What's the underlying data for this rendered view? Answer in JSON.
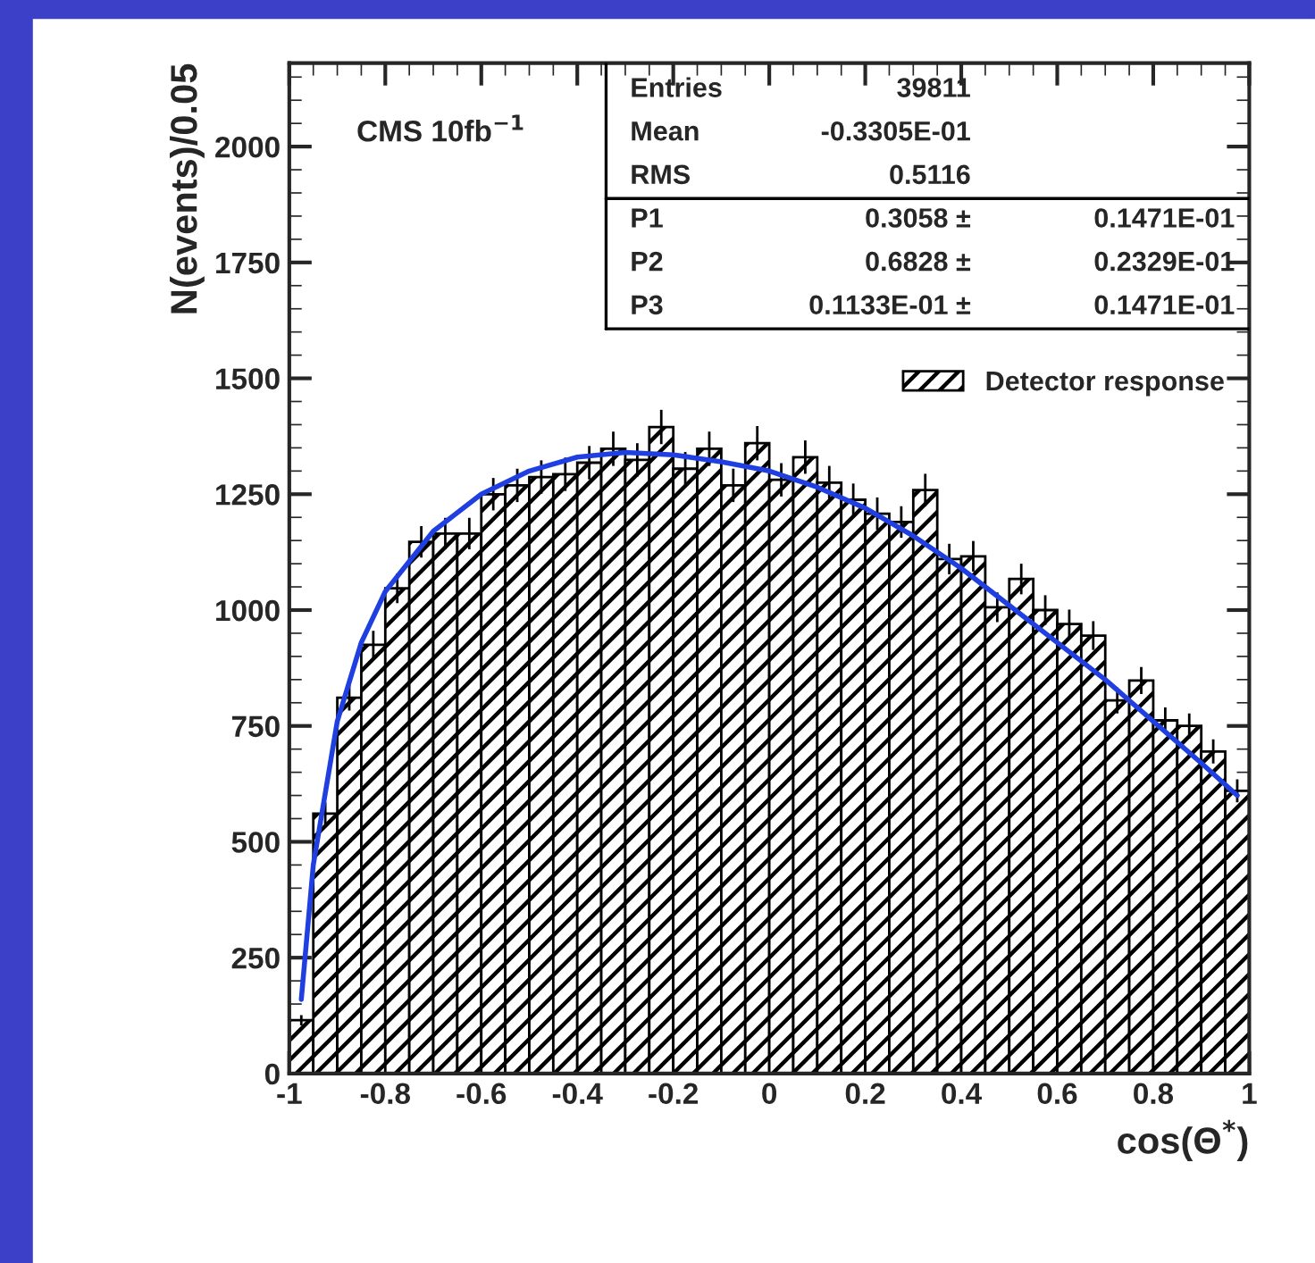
{
  "chart_data": {
    "type": "histogram",
    "xlabel": "cos(Θ$^{*}$)",
    "ylabel": "N(events)/0.05",
    "bins": [
      -1,
      -0.95,
      -0.9,
      -0.85,
      -0.8,
      -0.75,
      -0.7,
      -0.65,
      -0.6,
      -0.55,
      -0.5,
      -0.45,
      -0.4,
      -0.35,
      -0.3,
      -0.25,
      -0.2,
      -0.15,
      -0.1,
      -0.05,
      0,
      0.05,
      0.1,
      0.15,
      0.2,
      0.25,
      0.3,
      0.35,
      0.4,
      0.45,
      0.5,
      0.55,
      0.6,
      0.65,
      0.7,
      0.75,
      0.8,
      0.85,
      0.9,
      0.95,
      1
    ],
    "series": [
      {
        "name": "Detector response",
        "color": "#000000",
        "values": [
          115,
          561,
          811,
          925,
          1047,
          1147,
          1165,
          1165,
          1250,
          1269,
          1287,
          1293,
          1318,
          1348,
          1324,
          1395,
          1305,
          1348,
          1269,
          1360,
          1281,
          1330,
          1275,
          1238,
          1208,
          1190,
          1259,
          1110,
          1116,
          1006,
          1067,
          1000,
          970,
          945,
          805,
          848,
          762,
          750,
          695,
          610
        ],
        "errors": [
          11,
          24,
          28,
          30,
          32,
          34,
          34,
          34,
          35,
          36,
          36,
          36,
          36,
          37,
          36,
          37,
          36,
          37,
          36,
          37,
          36,
          36,
          36,
          35,
          35,
          34,
          35,
          33,
          33,
          32,
          33,
          32,
          31,
          31,
          28,
          29,
          28,
          27,
          26,
          25
        ]
      },
      {
        "type": "line",
        "color": "#1f3fe0",
        "x": [
          -0.975,
          -0.95,
          -0.9,
          -0.85,
          -0.8,
          -0.7,
          -0.6,
          -0.5,
          -0.4,
          -0.3,
          -0.2,
          -0.1,
          0,
          0.1,
          0.2,
          0.3,
          0.4,
          0.5,
          0.6,
          0.7,
          0.8,
          0.9,
          0.975
        ],
        "values": [
          160,
          450,
          760,
          930,
          1040,
          1170,
          1250,
          1300,
          1330,
          1340,
          1335,
          1320,
          1300,
          1265,
          1220,
          1160,
          1090,
          1010,
          930,
          850,
          760,
          670,
          600
        ]
      }
    ],
    "xlim": [
      -1,
      1
    ],
    "xticks": [
      -1,
      -0.8,
      -0.6,
      -0.4,
      -0.2,
      0,
      0.2,
      0.4,
      0.6,
      0.8,
      1
    ],
    "ylim": [
      0,
      2180
    ],
    "yticks": [
      0,
      250,
      500,
      750,
      1000,
      1250,
      1500,
      1750,
      2000
    ],
    "grid": false,
    "legend": "top right",
    "annotations": [
      "CMS 10fb$^{−1}$",
      "Entries\t39811",
      "Mean\t-0.3305E-01",
      "RMS\t0.5116",
      "P1\t0.3058 ±\t0.1471E-01",
      "P2\t0.6828 ±\t0.2329E-01",
      "P3\t0.1133E-01 ±\t0.1471E-01"
    ]
  }
}
